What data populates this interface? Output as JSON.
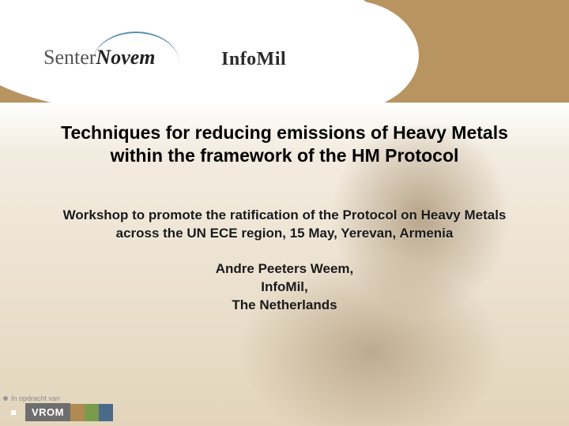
{
  "logos": {
    "senternovem": {
      "part1": "Senter",
      "part2": "Novem"
    },
    "infomil": "InfoMil"
  },
  "title": {
    "line1": "Techniques for reducing emissions of Heavy Metals",
    "line2": "within the framework of the HM Protocol"
  },
  "subtitle": {
    "line1": "Workshop to promote the ratification of the Protocol on Heavy Metals",
    "line2": "across the UN ECE region, 15 May, Yerevan, Armenia"
  },
  "author": {
    "line1": "Andre Peeters Weem,",
    "line2": "InfoMil,",
    "line3": "The Netherlands"
  },
  "footer": {
    "tag": "In opdracht van",
    "vrom": "VROM",
    "squares": [
      "#b08a52",
      "#7a9a4e",
      "#4a6a8a"
    ]
  },
  "colors": {
    "brand_tan": "#b89461",
    "text": "#000000"
  }
}
